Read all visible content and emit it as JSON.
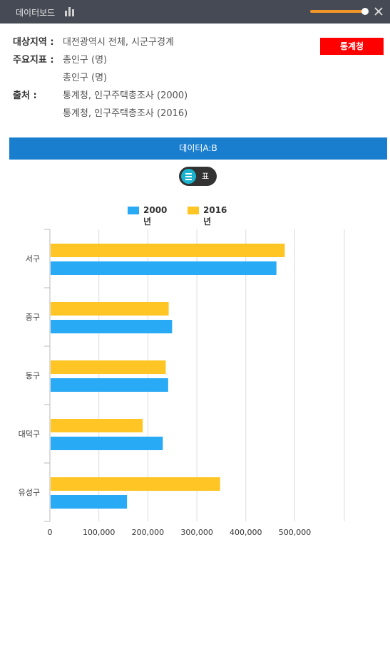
{
  "header": {
    "title": "데이터보드",
    "chart_icon": "bar-chart-icon",
    "close_icon": "close-icon",
    "zoom_level": 0.95
  },
  "info": {
    "region_label": "대상지역 :",
    "region_value": "대전광역시 전체, 시군구경계",
    "indicator_label": "주요지표 :",
    "indicator_values": [
      "총인구 (명)",
      "총인구 (명)"
    ],
    "source_label": "출처 :",
    "source_values": [
      "통계청, 인구주택총조사 (2000)",
      "통계청, 인구주택총조사 (2016)"
    ]
  },
  "source_button": "통계청",
  "data_bar_label": "데이터A:B",
  "view_toggle": {
    "icon": "list-icon",
    "label": "표"
  },
  "colors": {
    "series_2000": "#29aaf4",
    "series_2016": "#fec524",
    "source_button": "#ff0000",
    "data_bar": "#1a7ecf"
  },
  "chart_data": {
    "type": "bar",
    "orientation": "horizontal",
    "categories": [
      "서구",
      "중구",
      "동구",
      "대덕구",
      "유성구"
    ],
    "series": [
      {
        "name": "2016년",
        "values": [
          478000,
          241000,
          235000,
          188000,
          346000
        ]
      },
      {
        "name": "2000년",
        "values": [
          461000,
          248000,
          240000,
          229000,
          156000
        ]
      }
    ],
    "xlim": [
      0,
      600000
    ],
    "xticks": [
      0,
      100000,
      200000,
      300000,
      400000,
      500000
    ],
    "xtick_labels": [
      "0",
      "100,000",
      "200,000",
      "300,000",
      "400,000",
      "500,000"
    ],
    "legend": [
      {
        "name": "2000년",
        "color": "#29aaf4"
      },
      {
        "name": "2016년",
        "color": "#fec524"
      }
    ],
    "legend_position": "top",
    "grid": true
  }
}
